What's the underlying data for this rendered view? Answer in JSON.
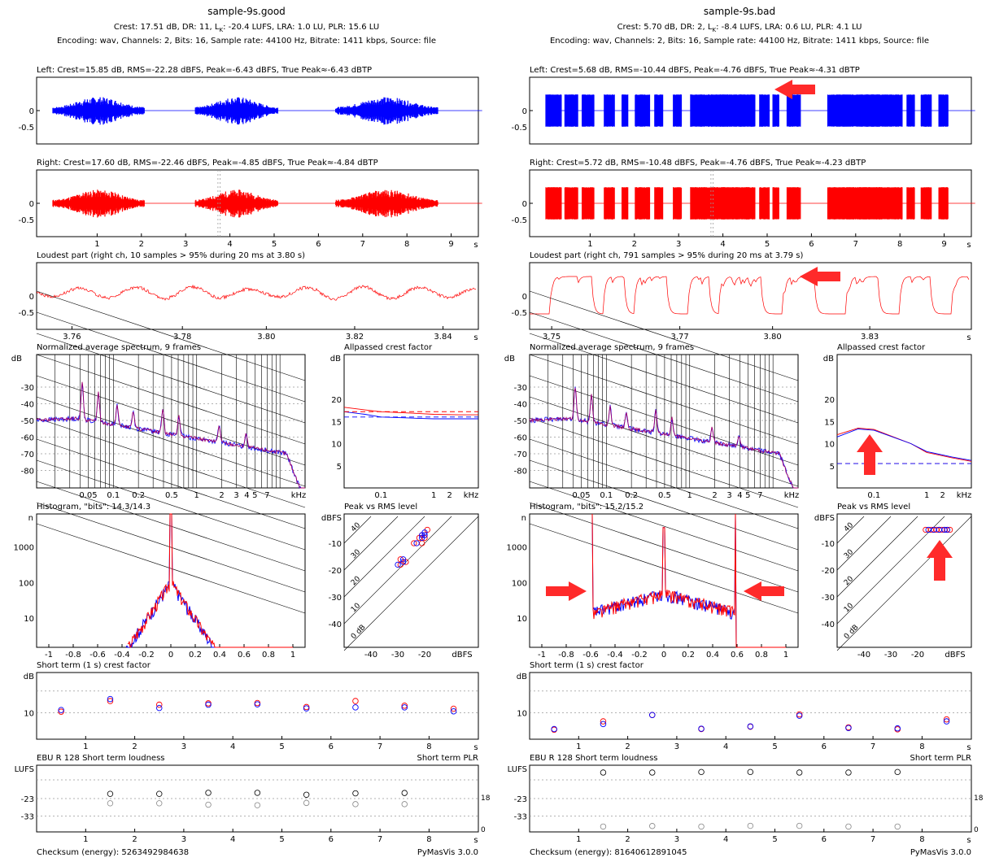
{
  "panels": [
    {
      "id": "good",
      "title": "sample-9s.good",
      "summary": "Crest: 17.51 dB,  DR: 11,  L",
      "summary_k": "K",
      "summary_rest": ": -20.4 LUFS,  LRA: 1.0 LU,  PLR: 15.6 LU",
      "encoding": "Encoding: wav,  Channels: 2,  Bits: 16,  Sample rate: 44100 Hz,  Bitrate: 1411 kbps,  Source: file",
      "left_title": "Left: Crest=15.85 dB, RMS=-22.28 dBFS, Peak=-6.43 dBFS, True Peak≈-6.43 dBTP",
      "right_title": "Right: Crest=17.60 dB, RMS=-22.46 dBFS, Peak=-4.85 dBFS, True Peak≈-4.84 dBTP",
      "loudest_title": "Loudest part (right ch, 10 samples > 95% during 20 ms at 3.80 s)",
      "spectrum_title": "Normalized average spectrum, 9 frames",
      "allpass_title": "Allpassed crest factor",
      "histogram_title": "Histogram, \"bits\": 14.3/14.3",
      "pvr_title": "Peak vs RMS level",
      "shortcrest_title": "Short term (1 s) crest factor",
      "ebu_title": "EBU R 128 Short term loudness",
      "plr_label": "Short term PLR",
      "checksum": "Checksum (energy): 5263492984638",
      "version": "PyMasVis 3.0.0",
      "loudest_ticks": [
        "3.76",
        "3.78",
        "3.80",
        "3.82",
        "3.84"
      ],
      "wave_blocks": [
        [
          0.0,
          2.07
        ],
        [
          3.22,
          5.08
        ],
        [
          6.39,
          8.7
        ]
      ],
      "wave_amp": "low",
      "spectrum_style": "good",
      "allpass_crest": [
        18.2,
        17.6,
        17.2,
        16.8,
        16.6,
        16.5,
        16.5
      ],
      "allpass_blue": [
        17.2,
        16.6,
        16.0,
        15.7,
        15.6,
        15.6,
        15.6
      ],
      "allpass_dashed": [
        17.2,
        16.0
      ],
      "histogram_style": "good",
      "pvr_points_red": [
        [
          -24,
          -10
        ],
        [
          -22,
          -8
        ],
        [
          -21,
          -7
        ],
        [
          -20,
          -8
        ],
        [
          -19,
          -5
        ],
        [
          -20,
          -7
        ],
        [
          -29,
          -16
        ],
        [
          -27,
          -17
        ],
        [
          -29,
          -18
        ],
        [
          -21,
          -10
        ]
      ],
      "pvr_points_blue": [
        [
          -23,
          -10
        ],
        [
          -21,
          -8
        ],
        [
          -20,
          -7
        ],
        [
          -20,
          -6
        ],
        [
          -28,
          -17
        ],
        [
          -30,
          -18
        ],
        [
          -28,
          -16
        ],
        [
          -21,
          -7
        ]
      ],
      "short_crest_red": [
        [
          0.5,
          10.3
        ],
        [
          1.5,
          13.5
        ],
        [
          2.5,
          12.4
        ],
        [
          3.5,
          12.8
        ],
        [
          4.5,
          12.9
        ],
        [
          5.5,
          11.7
        ],
        [
          6.5,
          13.5
        ],
        [
          7.5,
          12.1
        ],
        [
          8.5,
          11.2
        ]
      ],
      "short_crest_blue": [
        [
          0.5,
          10.8
        ],
        [
          1.5,
          14.1
        ],
        [
          2.5,
          11.4
        ],
        [
          3.5,
          12.4
        ],
        [
          4.5,
          12.5
        ],
        [
          5.5,
          11.3
        ],
        [
          6.5,
          11.6
        ],
        [
          7.5,
          11.6
        ],
        [
          8.5,
          10.4
        ]
      ],
      "ebu_black": [
        [
          1.5,
          -20.3
        ],
        [
          2.5,
          -20.3
        ],
        [
          3.5,
          -19.7
        ],
        [
          4.5,
          -19.7
        ],
        [
          5.5,
          -20.8
        ],
        [
          6.5,
          -20.0
        ],
        [
          7.5,
          -19.8
        ]
      ],
      "ebu_gray": [
        [
          1.5,
          -25.7
        ],
        [
          2.5,
          -25.7
        ],
        [
          3.5,
          -26.5
        ],
        [
          4.5,
          -26.8
        ],
        [
          5.5,
          -25.5
        ],
        [
          6.5,
          -26.2
        ],
        [
          7.5,
          -26.2
        ]
      ],
      "arrows": []
    },
    {
      "id": "bad",
      "title": "sample-9s.bad",
      "summary": "Crest: 5.70 dB,  DR: 2,  L",
      "summary_k": "K",
      "summary_rest": ": -8.4 LUFS,  LRA: 0.6 LU,  PLR: 4.1 LU",
      "encoding": "Encoding: wav,  Channels: 2,  Bits: 16,  Sample rate: 44100 Hz,  Bitrate: 1411 kbps,  Source: file",
      "left_title": "Left: Crest=5.68 dB, RMS=-10.44 dBFS, Peak=-4.76 dBFS, True Peak≈-4.31 dBTP",
      "right_title": "Right: Crest=5.72 dB, RMS=-10.48 dBFS, Peak=-4.76 dBFS, True Peak≈-4.23 dBTP",
      "loudest_title": "Loudest part (right ch, 791 samples > 95% during 20 ms at 3.79 s)",
      "spectrum_title": "Normalized average spectrum, 9 frames",
      "allpass_title": "Allpassed crest factor",
      "histogram_title": "Histogram, \"bits\": 15.2/15.2",
      "pvr_title": "Peak vs RMS level",
      "shortcrest_title": "Short term (1 s) crest factor",
      "ebu_title": "EBU R 128 Short term loudness",
      "plr_label": "Short term PLR",
      "checksum": "Checksum (energy): 81640612891045",
      "version": "PyMasVis 3.0.0",
      "loudest_ticks": [
        "3.75",
        "3.77",
        "3.80",
        "3.83"
      ],
      "wave_blocks": [
        [
          0.0,
          0.35
        ],
        [
          0.43,
          0.72
        ],
        [
          0.82,
          1.09
        ],
        [
          1.32,
          1.55
        ],
        [
          1.72,
          1.86
        ],
        [
          2.02,
          2.35
        ],
        [
          2.46,
          2.65
        ],
        [
          2.88,
          3.06
        ],
        [
          3.27,
          4.73
        ],
        [
          4.83,
          5.05
        ],
        [
          5.13,
          5.27
        ],
        [
          5.45,
          5.76
        ],
        [
          6.37,
          8.05
        ],
        [
          8.16,
          8.33
        ],
        [
          8.48,
          8.72
        ],
        [
          8.88,
          9.09
        ]
      ],
      "wave_amp": "high",
      "spectrum_style": "bad",
      "allpass_crest": [
        12.0,
        13.5,
        13.2,
        10.0,
        8.0,
        6.8,
        6.0
      ],
      "allpass_blue": [
        11.5,
        13.3,
        13.0,
        10.0,
        8.2,
        7.0,
        6.2
      ],
      "allpass_dashed": [
        5.5,
        5.5
      ],
      "histogram_style": "bad",
      "pvr_points_red": [
        [
          -17,
          -5
        ],
        [
          -15,
          -5
        ],
        [
          -14,
          -5
        ],
        [
          -13,
          -5
        ],
        [
          -12,
          -5
        ],
        [
          -11,
          -5
        ],
        [
          -10,
          -5
        ],
        [
          -9,
          -5
        ],
        [
          -8,
          -5
        ]
      ],
      "pvr_points_blue": [
        [
          -16,
          -5
        ],
        [
          -14,
          -5
        ],
        [
          -12,
          -5
        ],
        [
          -10,
          -5
        ],
        [
          -9,
          -5
        ]
      ],
      "short_crest_red": [
        [
          0.5,
          4.9
        ],
        [
          1.5,
          7.4
        ],
        [
          2.5,
          9.3
        ],
        [
          3.5,
          5.1
        ],
        [
          4.5,
          5.8
        ],
        [
          5.5,
          9.5
        ],
        [
          6.5,
          5.6
        ],
        [
          7.5,
          5.0
        ],
        [
          8.5,
          8.0
        ]
      ],
      "short_crest_blue": [
        [
          0.5,
          5.1
        ],
        [
          1.5,
          6.6
        ],
        [
          2.5,
          9.3
        ],
        [
          3.5,
          5.2
        ],
        [
          4.5,
          5.9
        ],
        [
          5.5,
          9.1
        ],
        [
          6.5,
          5.4
        ],
        [
          7.5,
          5.3
        ],
        [
          8.5,
          7.4
        ]
      ],
      "ebu_black": [
        [
          1.5,
          -8.1
        ],
        [
          2.5,
          -8.1
        ],
        [
          3.5,
          -7.8
        ],
        [
          4.5,
          -7.8
        ],
        [
          5.5,
          -8.1
        ],
        [
          6.5,
          -8.1
        ],
        [
          7.5,
          -7.8
        ]
      ],
      "ebu_gray": [
        [
          1.5,
          -39.0
        ],
        [
          2.5,
          -38.7
        ],
        [
          3.5,
          -39.0
        ],
        [
          4.5,
          -38.6
        ],
        [
          5.5,
          -38.6
        ],
        [
          6.5,
          -39.0
        ],
        [
          7.5,
          -39.0
        ]
      ],
      "arrows": [
        "left",
        "loudest",
        "allpass",
        "hist-left",
        "hist-right",
        "pvr"
      ]
    }
  ],
  "axis_labels": {
    "s": "s",
    "db": "dB",
    "n": "n",
    "dbfs": "dBFS",
    "khz": "kHz",
    "lufs": "LUFS",
    "zero": "0",
    "neg_half": "-0.5",
    "plr_max": "18",
    "plr_zero": "0"
  },
  "time_ticks": [
    "1",
    "2",
    "3",
    "4",
    "5",
    "6",
    "7",
    "8",
    "9"
  ],
  "short_ticks": [
    "1",
    "2",
    "3",
    "4",
    "5",
    "6",
    "7",
    "8"
  ],
  "spectrum_db_ticks": [
    "-30",
    "-40",
    "-50",
    "-60",
    "-70",
    "-80"
  ],
  "spectrum_freq_ticks": [
    "0.05",
    "0.1",
    "0.2",
    "0.5",
    "1",
    "2",
    "3",
    "4",
    "5",
    "7"
  ],
  "allpass_db_ticks": [
    "20",
    "15",
    "10",
    "5"
  ],
  "allpass_freq_ticks": [
    "0.1",
    "1",
    "2"
  ],
  "hist_y_ticks": [
    "1000",
    "100",
    "10"
  ],
  "hist_x_ticks": [
    "-1",
    "-0.8",
    "-0.6",
    "-0.4",
    "-0.2",
    "0",
    "0.2",
    "0.4",
    "0.6",
    "0.8",
    "1"
  ],
  "pvr_y_ticks": [
    "-10",
    "-20",
    "-30",
    "-40"
  ],
  "pvr_x_ticks": [
    "-40",
    "-30",
    "-20"
  ],
  "pvr_diag_labels": [
    "40",
    "30",
    "20",
    "10",
    "0 dB"
  ],
  "crest_y_tick": "10",
  "ebu_y_ticks": [
    "-23",
    "-33"
  ],
  "colors": {
    "left": "#0000ff",
    "right": "#ff0000",
    "mix": "#a0006a",
    "arrow": "#ff2a2a",
    "gray": "#888888"
  }
}
